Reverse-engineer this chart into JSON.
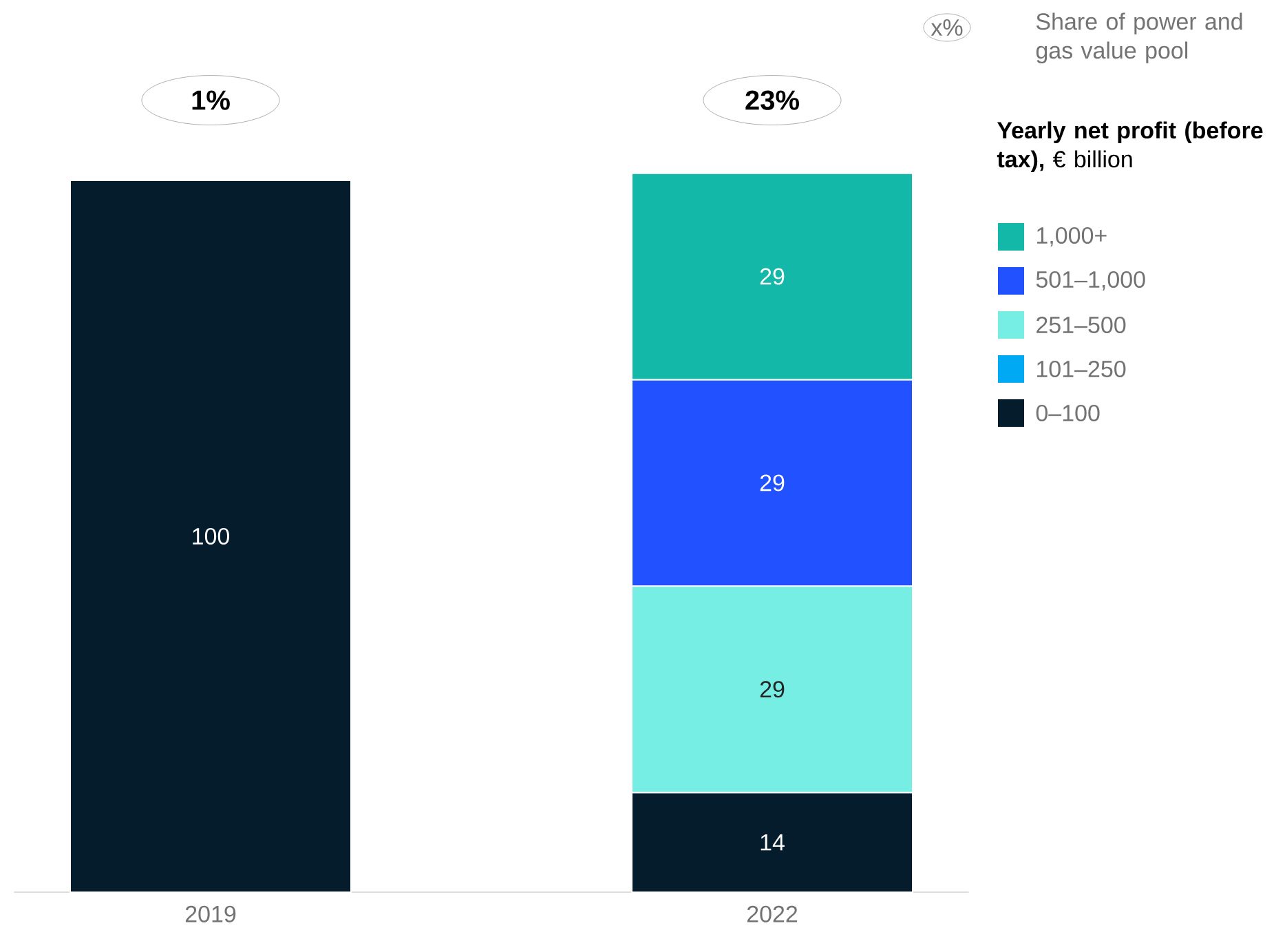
{
  "chart_data": {
    "type": "bar",
    "stacked": true,
    "categories": [
      "2019",
      "2022"
    ],
    "series": [
      {
        "name": "0–100",
        "color": "#051c2c",
        "values": [
          100,
          14
        ]
      },
      {
        "name": "101–250",
        "color": "#00a9f4",
        "values": [
          null,
          null
        ]
      },
      {
        "name": "251–500",
        "color": "#76eee4",
        "values": [
          null,
          29
        ]
      },
      {
        "name": "501–1,000",
        "color": "#2251ff",
        "values": [
          null,
          29
        ]
      },
      {
        "name": "1,000+",
        "color": "#14b8a9",
        "values": [
          null,
          29
        ]
      }
    ],
    "data_labels": true,
    "legend": "right",
    "legend_title": "**Yearly net profit (before tax),** € billion",
    "annotations": [
      "1%",
      "23%",
      "x%",
      "Share of power and gas value pool"
    ]
  }
}
